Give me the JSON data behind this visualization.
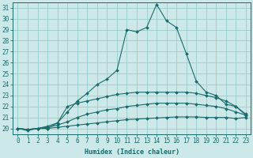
{
  "xlabel": "Humidex (Indice chaleur)",
  "bg_color": "#cce8e8",
  "grid_color": "#99cccc",
  "line_color": "#1a6b6b",
  "xlim": [
    -0.5,
    23.5
  ],
  "ylim": [
    19.5,
    31.5
  ],
  "xticks": [
    0,
    1,
    2,
    3,
    4,
    5,
    6,
    7,
    8,
    9,
    10,
    11,
    12,
    13,
    14,
    15,
    16,
    17,
    18,
    19,
    20,
    21,
    22,
    23
  ],
  "yticks": [
    20,
    21,
    22,
    23,
    24,
    25,
    26,
    27,
    28,
    29,
    30,
    31
  ],
  "series": [
    [
      20.0,
      19.8,
      20.0,
      20.0,
      20.5,
      21.5,
      22.5,
      23.2,
      24.0,
      24.5,
      25.3,
      29.0,
      28.8,
      29.2,
      31.3,
      29.8,
      29.2,
      26.8,
      24.3,
      23.3,
      23.0,
      22.2,
      22.0,
      21.3
    ],
    [
      20.0,
      19.9,
      20.0,
      20.2,
      20.5,
      22.0,
      22.3,
      22.5,
      22.7,
      22.9,
      23.1,
      23.2,
      23.3,
      23.3,
      23.3,
      23.3,
      23.3,
      23.3,
      23.2,
      23.0,
      22.8,
      22.5,
      22.0,
      21.2
    ],
    [
      20.0,
      19.9,
      20.0,
      20.1,
      20.3,
      20.6,
      21.0,
      21.3,
      21.5,
      21.7,
      21.8,
      22.0,
      22.1,
      22.2,
      22.3,
      22.3,
      22.3,
      22.3,
      22.2,
      22.1,
      22.0,
      21.8,
      21.5,
      21.2
    ],
    [
      20.0,
      19.9,
      20.0,
      20.0,
      20.1,
      20.2,
      20.3,
      20.4,
      20.5,
      20.6,
      20.7,
      20.8,
      20.85,
      20.9,
      20.95,
      21.0,
      21.05,
      21.05,
      21.05,
      21.0,
      21.0,
      21.0,
      20.9,
      21.0
    ]
  ],
  "marker": "D",
  "markersize": 2.0,
  "linewidth": 0.8,
  "xlabel_fontsize": 6.0,
  "tick_fontsize": 5.5
}
